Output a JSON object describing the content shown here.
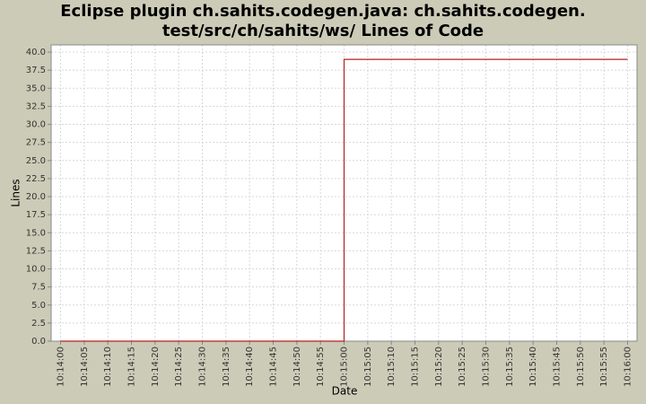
{
  "chart_data": {
    "type": "step",
    "title": [
      "Eclipse plugin ch.sahits.codegen.java: ch.sahits.codegen.",
      "test/src/ch/sahits/ws/ Lines of Code"
    ],
    "x_label": "Date",
    "y_label": "Lines",
    "x": [
      "10:14:00",
      "10:15:00",
      "10:16:00"
    ],
    "values": [
      0,
      39,
      39
    ],
    "color": "#b22222",
    "xlim": [
      "10:13:58",
      "10:16:02"
    ],
    "xticks": [
      "10:14:00",
      "10:14:05",
      "10:14:10",
      "10:14:15",
      "10:14:20",
      "10:14:25",
      "10:14:30",
      "10:14:35",
      "10:14:40",
      "10:14:45",
      "10:14:50",
      "10:14:55",
      "10:15:00",
      "10:15:05",
      "10:15:10",
      "10:15:15",
      "10:15:20",
      "10:15:25",
      "10:15:30",
      "10:15:35",
      "10:15:40",
      "10:15:45",
      "10:15:50",
      "10:15:55",
      "10:16:00"
    ],
    "ylim": [
      0,
      41
    ],
    "yticks": [
      {
        "value": 0,
        "label": "0.0"
      },
      {
        "value": 2.5,
        "label": "2.5"
      },
      {
        "value": 5,
        "label": "5.0"
      },
      {
        "value": 7.5,
        "label": "7.5"
      },
      {
        "value": 10,
        "label": "10.0"
      },
      {
        "value": 12.5,
        "label": "12.5"
      },
      {
        "value": 15,
        "label": "15.0"
      },
      {
        "value": 17.5,
        "label": "17.5"
      },
      {
        "value": 20,
        "label": "20.0"
      },
      {
        "value": 22.5,
        "label": "22.5"
      },
      {
        "value": 25,
        "label": "25.0"
      },
      {
        "value": 27.5,
        "label": "27.5"
      },
      {
        "value": 30,
        "label": "30.0"
      },
      {
        "value": 32.5,
        "label": "32.5"
      },
      {
        "value": 35,
        "label": "35.0"
      },
      {
        "value": 37.5,
        "label": "37.5"
      },
      {
        "value": 40,
        "label": "40.0"
      }
    ],
    "grid": true
  }
}
